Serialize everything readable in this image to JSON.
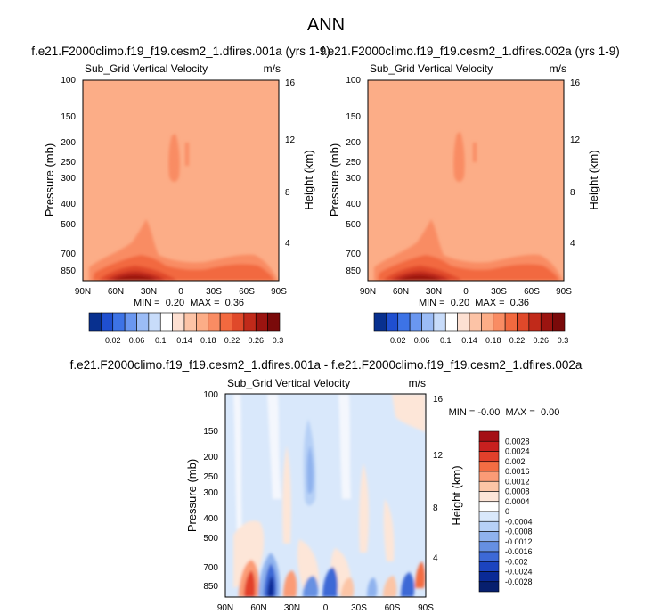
{
  "page_title": "ANN",
  "chart_data": [
    {
      "type": "heatmap",
      "title": "f.e21.F2000climo.f19_f19.cesm2_1.dfires.001a (yrs 1-9)",
      "subtitle": "Sub_Grid Vertical Velocity",
      "units": "m/s",
      "xlabel": "",
      "ylabel": "Pressure (mb)",
      "ylabel_right": "Height (km)",
      "x_ticks": [
        "90N",
        "60N",
        "30N",
        "0",
        "30S",
        "60S",
        "90S"
      ],
      "y_ticks": [
        "100",
        "150",
        "200",
        "250",
        "300",
        "400",
        "500",
        "700",
        "850"
      ],
      "y_ticks_right": [
        "16",
        "12",
        "8",
        "4"
      ],
      "xlim": [
        90,
        -90
      ],
      "ylim": [
        100,
        925
      ],
      "min_max_label": "MIN =  0.20  MAX =  0.36",
      "min": 0.2,
      "max": 0.36,
      "background_value": 0.2,
      "colorbar_ticks": [
        "0.02",
        "0.06",
        "0.1",
        "0.14",
        "0.18",
        "0.22",
        "0.26",
        "0.3"
      ]
    },
    {
      "type": "heatmap",
      "title": "f.e21.F2000climo.f19_f19.cesm2_1.dfires.002a (yrs 1-9)",
      "subtitle": "Sub_Grid Vertical Velocity",
      "units": "m/s",
      "xlabel": "",
      "ylabel": "Pressure (mb)",
      "ylabel_right": "Height (km)",
      "x_ticks": [
        "90N",
        "60N",
        "30N",
        "0",
        "30S",
        "60S",
        "90S"
      ],
      "y_ticks": [
        "100",
        "150",
        "200",
        "250",
        "300",
        "400",
        "500",
        "700",
        "850"
      ],
      "y_ticks_right": [
        "16",
        "12",
        "8",
        "4"
      ],
      "xlim": [
        90,
        -90
      ],
      "ylim": [
        100,
        925
      ],
      "min_max_label": "MIN =  0.20  MAX =  0.36",
      "min": 0.2,
      "max": 0.36,
      "background_value": 0.2,
      "colorbar_ticks": [
        "0.02",
        "0.06",
        "0.1",
        "0.14",
        "0.18",
        "0.22",
        "0.26",
        "0.3"
      ]
    },
    {
      "type": "heatmap",
      "title": "f.e21.F2000climo.f19_f19.cesm2_1.dfires.001a - f.e21.F2000climo.f19_f19.cesm2_1.dfires.002a",
      "subtitle": "Sub_Grid Vertical Velocity",
      "units": "m/s",
      "xlabel": "",
      "ylabel": "Pressure (mb)",
      "ylabel_right": "Height (km)",
      "x_ticks": [
        "90N",
        "60N",
        "30N",
        "0",
        "30S",
        "60S",
        "90S"
      ],
      "y_ticks": [
        "100",
        "150",
        "200",
        "250",
        "300",
        "400",
        "500",
        "700",
        "850"
      ],
      "y_ticks_right": [
        "16",
        "12",
        "8",
        "4"
      ],
      "xlim": [
        90,
        -90
      ],
      "ylim": [
        100,
        925
      ],
      "min_max_label": "MIN = -0.00  MAX =  0.00",
      "min": -0.0,
      "max": 0.0,
      "background_value": 0.0,
      "colorbar_ticks": [
        "0.0028",
        "0.0024",
        "0.002",
        "0.0016",
        "0.0012",
        "0.0008",
        "0.0004",
        "0",
        "-0.0004",
        "-0.0008",
        "-0.0012",
        "-0.0016",
        "-0.002",
        "-0.0024",
        "-0.0028"
      ]
    }
  ],
  "colors": {
    "field_background": "#fcad87",
    "seq_scale": [
      "#08308f",
      "#1f4fd0",
      "#3d73e6",
      "#6a97f0",
      "#9bbcf6",
      "#c8dcfa",
      "#ffffff",
      "#fde0d2",
      "#fcc3a6",
      "#fcad87",
      "#f98c63",
      "#f2693f",
      "#e0492a",
      "#c12a1a",
      "#9b1410",
      "#7a0a0a"
    ],
    "diff_scale": [
      "#a50f15",
      "#c8201f",
      "#e2402b",
      "#f46d43",
      "#fb9b76",
      "#fcc5a6",
      "#fde6d8",
      "#ffffff",
      "#d9e8fb",
      "#b6d0f6",
      "#8fb2ee",
      "#6690e2",
      "#3d69d6",
      "#1c44bf",
      "#0a2a96",
      "#071f6e"
    ]
  }
}
